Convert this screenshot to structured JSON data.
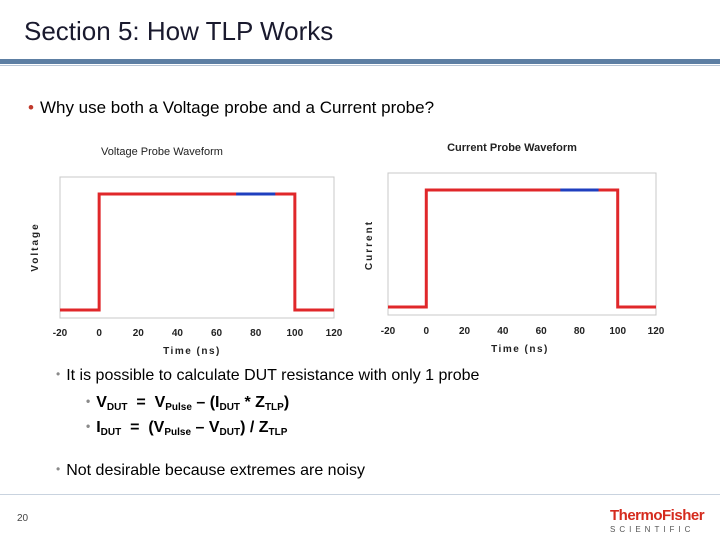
{
  "title": "Section 5: How TLP Works",
  "bullet1": "Why use both a Voltage probe and a Current probe?",
  "bullet2": "It is possible to calculate DUT resistance with only 1 probe",
  "eq1": {
    "lhs_main": "V",
    "lhs_sub": "DUT",
    "eq": "=",
    "a_main": "V",
    "a_sub": "Pulse",
    "b": " – (I",
    "b_sub": "DUT",
    "c": " * Z",
    "c_sub": "TLP",
    "d": ")"
  },
  "eq2": {
    "lhs_main": "I",
    "lhs_sub": "DUT",
    "eq": "=",
    "a_main": "(V",
    "a_sub": "Pulse",
    "b": " – V",
    "b_sub": "DUT",
    "c": ") / Z",
    "c_sub": "TLP"
  },
  "bullet3": "Not desirable because extremes are noisy",
  "page_number": "20",
  "logo": {
    "line1a": "Thermo",
    "line1b": "Fisher",
    "line2": "SCIENTIFIC"
  },
  "colors": {
    "accent": "#c0392b",
    "rule": "#5d7fa3",
    "series_red": "#e0272a",
    "series_blue": "#1f3fbf"
  },
  "chart_data": [
    {
      "type": "line",
      "title": "Voltage Probe Waveform",
      "xlabel": "Time (ns)",
      "ylabel": "Voltage",
      "xlim": [
        -20,
        120
      ],
      "xticks": [
        "-20",
        "0",
        "20",
        "40",
        "60",
        "80",
        "100",
        "120"
      ],
      "series": [
        {
          "color": "#e0272a",
          "x": [
            -20,
            0,
            0,
            70,
            70,
            100,
            100,
            120
          ],
          "y": [
            0,
            0,
            1,
            1,
            1,
            1,
            0,
            0
          ]
        },
        {
          "color": "#1f3fbf",
          "x": [
            70,
            90
          ],
          "y": [
            1,
            1
          ]
        }
      ]
    },
    {
      "type": "line",
      "title": "Current Probe Waveform",
      "xlabel": "Time (ns)",
      "ylabel": "Current",
      "xlim": [
        -20,
        120
      ],
      "xticks": [
        "-20",
        "0",
        "20",
        "40",
        "60",
        "80",
        "100",
        "120"
      ],
      "series": [
        {
          "color": "#e0272a",
          "x": [
            -20,
            0,
            0,
            70,
            70,
            100,
            100,
            120
          ],
          "y": [
            0,
            0,
            1,
            1,
            1,
            1,
            0,
            0
          ]
        },
        {
          "color": "#1f3fbf",
          "x": [
            70,
            90
          ],
          "y": [
            1,
            1
          ]
        }
      ]
    }
  ]
}
